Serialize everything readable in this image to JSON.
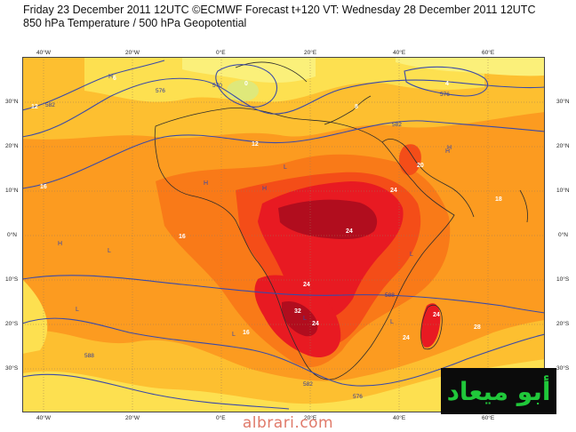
{
  "header": {
    "line1": "Friday 23 December 2011 12UTC ©ECMWF Forecast t+120 VT: Wednesday 28 December 2011 12UTC",
    "line2": "850 hPa Temperature / 500 hPa Geopotential"
  },
  "axes": {
    "lon_labels": [
      "40°W",
      "20°W",
      "0°E",
      "20°E",
      "40°E",
      "60°E"
    ],
    "lat_labels_left": [
      "30°N",
      "20°N",
      "10°N",
      "0°N",
      "10°S",
      "20°S",
      "30°S"
    ],
    "lat_labels_right": [
      "30°N",
      "20°N",
      "10°N",
      "0°N",
      "10°S",
      "20°S",
      "30°S"
    ]
  },
  "temperature_labels": [
    "0",
    "4",
    "6",
    "8",
    "12",
    "12",
    "16",
    "16",
    "16",
    "18",
    "20",
    "24",
    "24",
    "24",
    "24",
    "24",
    "28",
    "32",
    "24"
  ],
  "pressure_labels": [
    "H",
    "H",
    "H",
    "H",
    "H",
    "H",
    "L",
    "L",
    "L",
    "L",
    "L",
    "L",
    "L"
  ],
  "geopotential_labels": [
    "576",
    "570",
    "582",
    "576",
    "582",
    "588",
    "588",
    "582",
    "576"
  ],
  "colors": {
    "t_lt_0": "#f2f0a0",
    "t_0_4": "#fbf07a",
    "t_4_8": "#fde050",
    "t_8_12": "#fdbf30",
    "t_12_16": "#fc9b20",
    "t_16_20": "#f97a18",
    "t_20_24": "#f44d18",
    "t_24_28": "#e81a22",
    "t_gt_28": "#b10d1e",
    "contour": "#3a4aa8",
    "coast": "#2c2c2c",
    "watermark_text": "#20c83a",
    "site_text": "#e07a6a"
  },
  "watermark": {
    "logo_text": "أبو ميعاد",
    "site": "albrari.com"
  }
}
